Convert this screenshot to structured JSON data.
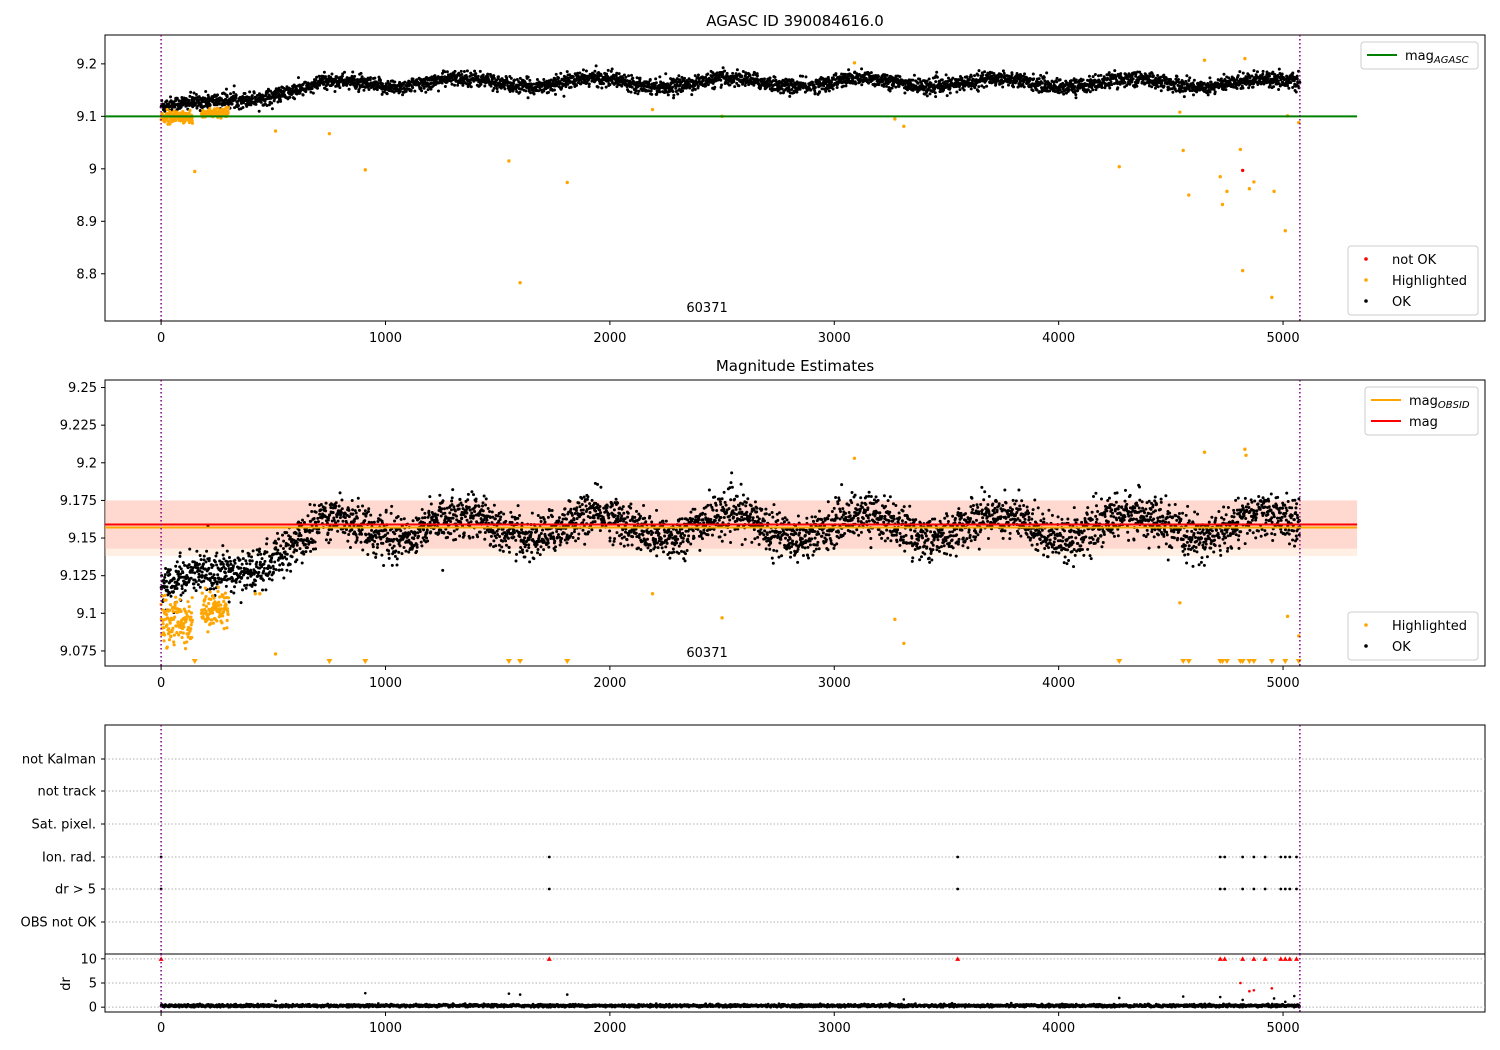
{
  "chart_data": [
    {
      "type": "scatter",
      "title": "AGASC ID 390084616.0",
      "xlim": [
        -250,
        5900
      ],
      "ylim": [
        8.71,
        9.255
      ],
      "xticks": [
        0,
        1000,
        2000,
        3000,
        4000,
        5000
      ],
      "yticks": [
        8.8,
        8.9,
        9.0,
        9.1,
        9.2
      ],
      "annotation": "60371",
      "vlines": [
        0,
        5075
      ],
      "hlines": [
        {
          "name": "mag_AGASC",
          "y": 9.1,
          "x_range": [
            -250,
            5330
          ],
          "color": "#008000"
        }
      ],
      "legend_upper": {
        "entries": [
          {
            "label": "mag",
            "sub": "AGASC",
            "color": "#008000",
            "kind": "line"
          }
        ]
      },
      "legend_lower": {
        "entries": [
          {
            "label": "not OK",
            "color": "#ff0000",
            "kind": "dot"
          },
          {
            "label": "Highlighted",
            "color": "#ffa500",
            "kind": "dot"
          },
          {
            "label": "OK",
            "color": "#000000",
            "kind": "dot"
          }
        ]
      },
      "series": [
        {
          "name": "OK",
          "color": "#000000",
          "trend": [
            [
              0,
              9.12
            ],
            [
              200,
              9.127
            ],
            [
              420,
              9.135
            ],
            [
              560,
              9.145
            ],
            [
              700,
              9.158
            ],
            [
              850,
              9.162
            ],
            [
              1200,
              9.165
            ],
            [
              5075,
              9.164
            ]
          ],
          "spread": 0.013
        },
        {
          "name": "Highlighted",
          "color": "#ffa500",
          "clusters": [
            {
              "x": [
                0,
                140
              ],
              "y": 9.098,
              "spread": 0.006
            },
            {
              "x": [
                180,
                300
              ],
              "y": 9.106,
              "spread": 0.004
            }
          ],
          "points": [
            [
              150,
              8.995
            ],
            [
              510,
              9.072
            ],
            [
              750,
              9.067
            ],
            [
              910,
              8.998
            ],
            [
              1550,
              9.015
            ],
            [
              1600,
              8.783
            ],
            [
              1810,
              8.974
            ],
            [
              2190,
              9.113
            ],
            [
              2500,
              9.1
            ],
            [
              3090,
              9.202
            ],
            [
              3270,
              9.095
            ],
            [
              3310,
              9.081
            ],
            [
              4270,
              9.004
            ],
            [
              4540,
              9.108
            ],
            [
              4555,
              9.035
            ],
            [
              4580,
              8.95
            ],
            [
              4650,
              9.207
            ],
            [
              4720,
              8.985
            ],
            [
              4730,
              8.932
            ],
            [
              4750,
              8.957
            ],
            [
              4810,
              9.037
            ],
            [
              4820,
              8.806
            ],
            [
              4830,
              9.21
            ],
            [
              4850,
              8.962
            ],
            [
              4870,
              8.975
            ],
            [
              4950,
              8.755
            ],
            [
              4960,
              8.957
            ],
            [
              5010,
              8.882
            ],
            [
              5020,
              9.101
            ],
            [
              5070,
              9.088
            ]
          ]
        },
        {
          "name": "not OK",
          "color": "#ff0000",
          "points": [
            [
              4820,
              8.997
            ]
          ]
        }
      ]
    },
    {
      "type": "scatter",
      "title": "Magnitude Estimates",
      "xlim": [
        -250,
        5900
      ],
      "ylim": [
        9.065,
        9.255
      ],
      "xticks": [
        0,
        1000,
        2000,
        3000,
        4000,
        5000
      ],
      "yticks": [
        9.075,
        9.1,
        9.125,
        9.15,
        9.175,
        9.2,
        9.225,
        9.25
      ],
      "annotation": "60371",
      "vlines": [
        0,
        5075
      ],
      "bands": [
        {
          "name": "mag band",
          "y": [
            9.143,
            9.175
          ],
          "x_range": [
            -250,
            5330
          ],
          "color": "#ff9aa6"
        },
        {
          "name": "mag_OBSID band",
          "y": [
            9.138,
            9.175
          ],
          "x_range": [
            -250,
            5330
          ],
          "color": "#ffd5b0"
        }
      ],
      "hlines": [
        {
          "name": "mag_OBSID",
          "y": 9.157,
          "x_range": [
            -250,
            5330
          ],
          "color": "#ffa500"
        },
        {
          "name": "mag",
          "y": 9.159,
          "x_range": [
            -250,
            5330
          ],
          "color": "#ff0000"
        }
      ],
      "legend_upper": {
        "entries": [
          {
            "label": "mag",
            "sub": "OBSID",
            "color": "#ffa500",
            "kind": "line"
          },
          {
            "label": "mag",
            "sub": "",
            "color": "#ff0000",
            "kind": "line"
          }
        ]
      },
      "legend_lower": {
        "entries": [
          {
            "label": "Highlighted",
            "color": "#ffa500",
            "kind": "dot"
          },
          {
            "label": "OK",
            "color": "#000000",
            "kind": "dot"
          }
        ]
      },
      "series": [
        {
          "name": "OK",
          "color": "#000000",
          "trend": [
            [
              0,
              9.118
            ],
            [
              200,
              9.125
            ],
            [
              420,
              9.13
            ],
            [
              560,
              9.142
            ],
            [
              700,
              9.156
            ],
            [
              850,
              9.158
            ],
            [
              5075,
              9.158
            ]
          ],
          "spread": 0.013
        },
        {
          "name": "Highlighted",
          "color": "#ffa500",
          "clusters": [
            {
              "x": [
                0,
                140
              ],
              "y": 9.095,
              "spread": 0.008
            },
            {
              "x": [
                180,
                300
              ],
              "y": 9.103,
              "spread": 0.006
            }
          ],
          "points": [
            [
              420,
              9.113
            ],
            [
              440,
              9.113
            ],
            [
              510,
              9.073
            ],
            [
              2190,
              9.113
            ],
            [
              2500,
              9.097
            ],
            [
              3090,
              9.203
            ],
            [
              3270,
              9.096
            ],
            [
              3310,
              9.08
            ],
            [
              4540,
              9.107
            ],
            [
              4650,
              9.207
            ],
            [
              4830,
              9.209
            ],
            [
              4835,
              9.205
            ],
            [
              5020,
              9.098
            ],
            [
              5070,
              9.085
            ]
          ],
          "floor_markers": [
            150,
            750,
            910,
            1550,
            1600,
            1810,
            4270,
            4555,
            4580,
            4720,
            4730,
            4750,
            4810,
            4820,
            4850,
            4870,
            4950,
            5010,
            5070
          ]
        }
      ]
    },
    {
      "type": "scatter",
      "title": "",
      "xlim": [
        -250,
        5900
      ],
      "xticks": [
        0,
        1000,
        2000,
        3000,
        4000,
        5000
      ],
      "vlines": [
        0,
        5075
      ],
      "flag_rows": [
        "not Kalman",
        "not track",
        "Sat. pixel.",
        "Ion. rad.",
        "dr > 5",
        "OBS not OK"
      ],
      "flags": {
        "Ion. rad.": [
          0,
          1730,
          3550,
          4720,
          4740,
          4820,
          4870,
          4920,
          4990,
          5010,
          5030,
          5060
        ],
        "dr > 5": [
          0,
          1730,
          3550,
          4720,
          4740,
          4820,
          4870,
          4920,
          4990,
          5010,
          5030,
          5060
        ]
      },
      "dr": {
        "ylabel": "dr",
        "ylim": [
          -1,
          11
        ],
        "yticks": [
          0,
          5,
          10
        ],
        "baseline": 0.3,
        "spread": 0.25,
        "outliers": [
          [
            510,
            1.3
          ],
          [
            910,
            2.9
          ],
          [
            1550,
            2.8
          ],
          [
            1600,
            2.6
          ],
          [
            1810,
            2.6
          ],
          [
            3310,
            1.6
          ],
          [
            4270,
            1.9
          ],
          [
            4555,
            2.2
          ],
          [
            4720,
            2.1
          ],
          [
            4810,
            5.0
          ],
          [
            4820,
            1.5
          ],
          [
            4850,
            3.3
          ],
          [
            4870,
            3.5
          ],
          [
            4950,
            3.9
          ],
          [
            4960,
            1.8
          ],
          [
            5010,
            1.1
          ],
          [
            5050,
            2.3
          ]
        ],
        "capped": [
          0,
          1730,
          3550,
          4720,
          4740,
          4820,
          4870,
          4920,
          4990,
          5010,
          5030,
          5060
        ]
      }
    }
  ]
}
